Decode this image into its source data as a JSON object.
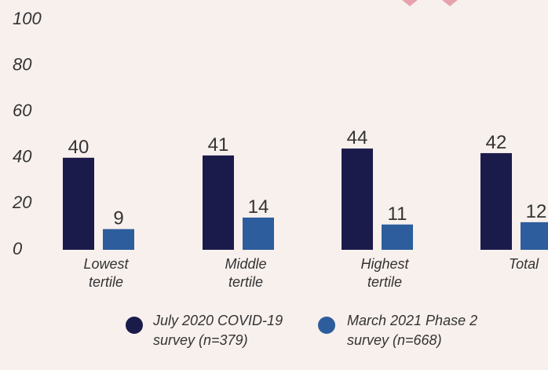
{
  "chart_data": {
    "type": "bar",
    "categories": [
      "Lowest tertile",
      "Middle tertile",
      "Highest tertile",
      "Total"
    ],
    "series": [
      {
        "name": "July 2020 COVID-19 survey (n=379)",
        "color": "#1b1b4b",
        "values": [
          40,
          41,
          44,
          42
        ]
      },
      {
        "name": "March 2021 Phase 2 survey (n=668)",
        "color": "#2d5d9c",
        "values": [
          9,
          14,
          11,
          12
        ]
      }
    ],
    "ylim": [
      0,
      100
    ],
    "yticks": [
      0,
      20,
      40,
      60,
      80,
      100
    ]
  }
}
